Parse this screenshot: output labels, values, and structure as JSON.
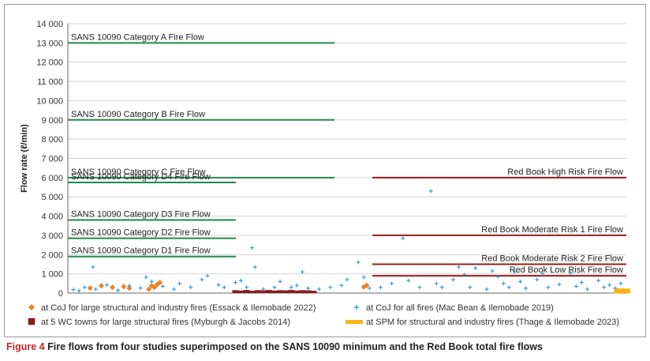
{
  "chart_data": {
    "type": "scatter",
    "ylabel": "Flow rate (ℓ/min)",
    "ylim": [
      0,
      14000
    ],
    "yticks": [
      0,
      1000,
      2000,
      3000,
      4000,
      5000,
      6000,
      7000,
      8000,
      9000,
      10000,
      11000,
      12000,
      13000,
      14000
    ],
    "ytick_labels": [
      "0",
      "1 000",
      "2 000",
      "3 000",
      "4 000",
      "5 000",
      "6 000",
      "7 000",
      "8 000",
      "9 000",
      "10 000",
      "11 000",
      "12 000",
      "13 000",
      "14 000"
    ],
    "grid": true,
    "legend_position": "bottom",
    "reference_lines": [
      {
        "label": "SANS 10090 Category A Fire Flow",
        "value": 13000,
        "group": "sans",
        "extent": "long",
        "color": "#1e8a4c"
      },
      {
        "label": "SANS 10090 Category B Fire Flow",
        "value": 9000,
        "group": "sans",
        "extent": "long",
        "color": "#1e8a4c"
      },
      {
        "label": "SANS 10090 Category C Fire Flow",
        "value": 6000,
        "group": "sans",
        "extent": "long",
        "color": "#1e8a4c"
      },
      {
        "label": "SANS 10090 Category D4 Fire Flow",
        "value": 5750,
        "group": "sans",
        "extent": "short",
        "color": "#1e8a4c"
      },
      {
        "label": "SANS 10090 Category D3 Fire Flow",
        "value": 3800,
        "group": "sans",
        "extent": "short",
        "color": "#1e8a4c"
      },
      {
        "label": "SANS 10090 Category D2 Fire Flow",
        "value": 2850,
        "group": "sans",
        "extent": "short",
        "color": "#1e8a4c"
      },
      {
        "label": "SANS 10090 Category D1 Fire Flow",
        "value": 1900,
        "group": "sans",
        "extent": "short",
        "color": "#1e8a4c"
      },
      {
        "label": "Red Book High Risk Fire Flow",
        "value": 6000,
        "group": "redbook",
        "color": "#9b1c1f"
      },
      {
        "label": "Red Book Moderate Risk 1 Fire Flow",
        "value": 3000,
        "group": "redbook",
        "color": "#9b1c1f"
      },
      {
        "label": "Red Book Moderate Risk 2 Fire Flow",
        "value": 1500,
        "group": "redbook",
        "color": "#9b1c1f"
      },
      {
        "label": "Red Book Low Risk Fire Flow",
        "value": 900,
        "group": "redbook",
        "color": "#9b1c1f"
      }
    ],
    "series": [
      {
        "name": "at CoJ for large structural and industry fires (Essack & Ilemobade 2022)",
        "marker": "diamond",
        "color": "#e8822b",
        "points": [
          [
            0.04,
            260
          ],
          [
            0.06,
            380
          ],
          [
            0.08,
            300
          ],
          [
            0.1,
            340
          ],
          [
            0.11,
            250
          ],
          [
            0.145,
            200
          ],
          [
            0.15,
            380
          ],
          [
            0.155,
            300
          ],
          [
            0.16,
            450
          ],
          [
            0.165,
            550
          ],
          [
            0.53,
            320
          ],
          [
            0.535,
            400
          ]
        ]
      },
      {
        "name": "at CoJ for all fires (Mac Bean & Ilemobade 2019)",
        "marker": "plus",
        "color": "#2a8fbf",
        "points": [
          [
            0.01,
            180
          ],
          [
            0.02,
            120
          ],
          [
            0.03,
            300
          ],
          [
            0.045,
            1350
          ],
          [
            0.05,
            200
          ],
          [
            0.07,
            420
          ],
          [
            0.09,
            150
          ],
          [
            0.11,
            380
          ],
          [
            0.13,
            260
          ],
          [
            0.14,
            820
          ],
          [
            0.15,
            600
          ],
          [
            0.17,
            350
          ],
          [
            0.19,
            200
          ],
          [
            0.2,
            500
          ],
          [
            0.22,
            300
          ],
          [
            0.24,
            700
          ],
          [
            0.25,
            900
          ],
          [
            0.27,
            420
          ],
          [
            0.28,
            300
          ],
          [
            0.3,
            550
          ],
          [
            0.31,
            650
          ],
          [
            0.32,
            300
          ],
          [
            0.33,
            2350
          ],
          [
            0.335,
            1350
          ],
          [
            0.35,
            200
          ],
          [
            0.37,
            300
          ],
          [
            0.38,
            600
          ],
          [
            0.4,
            300
          ],
          [
            0.41,
            400
          ],
          [
            0.42,
            1100
          ],
          [
            0.43,
            250
          ],
          [
            0.45,
            200
          ],
          [
            0.47,
            300
          ],
          [
            0.49,
            400
          ],
          [
            0.5,
            700
          ],
          [
            0.52,
            1600
          ],
          [
            0.53,
            820
          ],
          [
            0.54,
            250
          ],
          [
            0.56,
            300
          ],
          [
            0.58,
            500
          ],
          [
            0.6,
            2850
          ],
          [
            0.61,
            650
          ],
          [
            0.63,
            300
          ],
          [
            0.65,
            5300
          ],
          [
            0.66,
            500
          ],
          [
            0.67,
            300
          ],
          [
            0.69,
            700
          ],
          [
            0.7,
            1350
          ],
          [
            0.71,
            950
          ],
          [
            0.72,
            300
          ],
          [
            0.73,
            1300
          ],
          [
            0.75,
            200
          ],
          [
            0.76,
            1150
          ],
          [
            0.77,
            850
          ],
          [
            0.78,
            500
          ],
          [
            0.79,
            300
          ],
          [
            0.8,
            1100
          ],
          [
            0.81,
            600
          ],
          [
            0.82,
            250
          ],
          [
            0.84,
            700
          ],
          [
            0.85,
            1000
          ],
          [
            0.86,
            300
          ],
          [
            0.88,
            450
          ],
          [
            0.9,
            1050
          ],
          [
            0.91,
            350
          ],
          [
            0.92,
            550
          ],
          [
            0.93,
            200
          ],
          [
            0.95,
            650
          ],
          [
            0.96,
            300
          ],
          [
            0.97,
            420
          ],
          [
            0.98,
            250
          ],
          [
            0.99,
            500
          ]
        ]
      },
      {
        "name": "at 5 WC towns for large structural fires (Myburgh & Jacobs 2014)",
        "marker": "bar",
        "color": "#8a1c1f",
        "points": [
          [
            0.3,
            150
          ],
          [
            0.31,
            130
          ],
          [
            0.32,
            160
          ],
          [
            0.33,
            120
          ],
          [
            0.34,
            150
          ],
          [
            0.35,
            140
          ],
          [
            0.36,
            160
          ],
          [
            0.37,
            130
          ],
          [
            0.38,
            150
          ],
          [
            0.39,
            140
          ],
          [
            0.4,
            160
          ],
          [
            0.41,
            130
          ],
          [
            0.42,
            150
          ],
          [
            0.43,
            140
          ],
          [
            0.44,
            120
          ]
        ]
      },
      {
        "name": "at SPM for structural and industry fires (Thage & Ilemobade 2023)",
        "marker": "dash",
        "color": "#f5b516",
        "points": [
          [
            0.985,
            100
          ],
          [
            0.99,
            120
          ],
          [
            0.995,
            90
          ],
          [
            1.0,
            110
          ]
        ]
      }
    ]
  },
  "caption": {
    "figure_label": "Figure 4",
    "text": " Fire flows from four studies superimposed on the SANS 10090 minimum and the Red Book total fire flows"
  }
}
